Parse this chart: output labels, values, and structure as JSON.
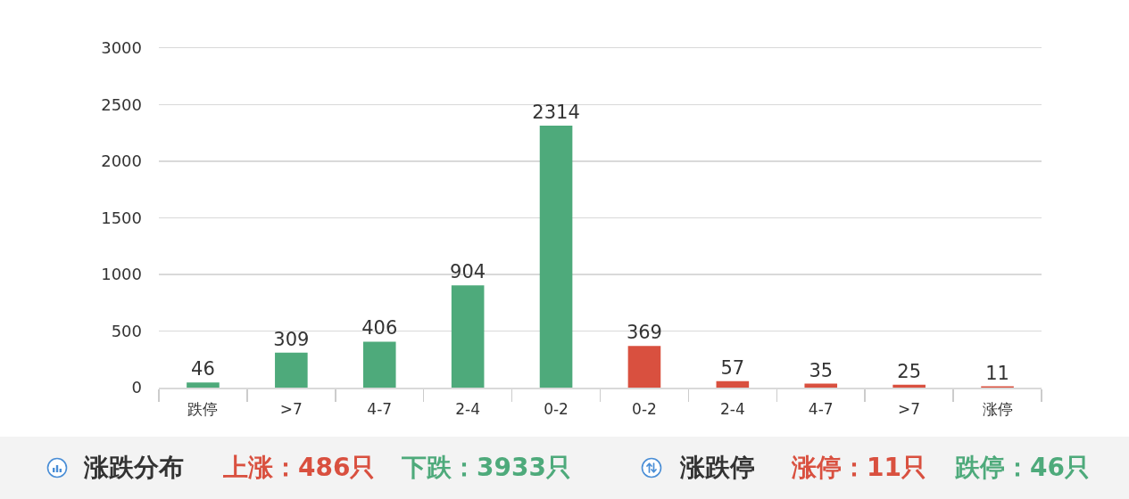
{
  "chart_data": {
    "type": "bar",
    "categories": [
      "跌停",
      ">7",
      "4-7",
      "2-4",
      "0-2",
      "0-2",
      "2-4",
      "4-7",
      ">7",
      "涨停"
    ],
    "values": [
      46,
      309,
      406,
      904,
      2314,
      369,
      57,
      35,
      25,
      11
    ],
    "colors": [
      "#4eaa7b",
      "#4eaa7b",
      "#4eaa7b",
      "#4eaa7b",
      "#4eaa7b",
      "#d9503f",
      "#d9503f",
      "#d9503f",
      "#d9503f",
      "#d9503f"
    ],
    "ylim": [
      0,
      3000
    ],
    "yticks": [
      0,
      500,
      1000,
      1500,
      2000,
      2500,
      3000
    ],
    "grid": "y",
    "data_labels": true,
    "annotations": [
      "涨跌分布",
      "上涨：486只",
      "下跌：3933只",
      "涨跌停",
      "涨停：11只",
      "跌停：46只"
    ]
  }
}
